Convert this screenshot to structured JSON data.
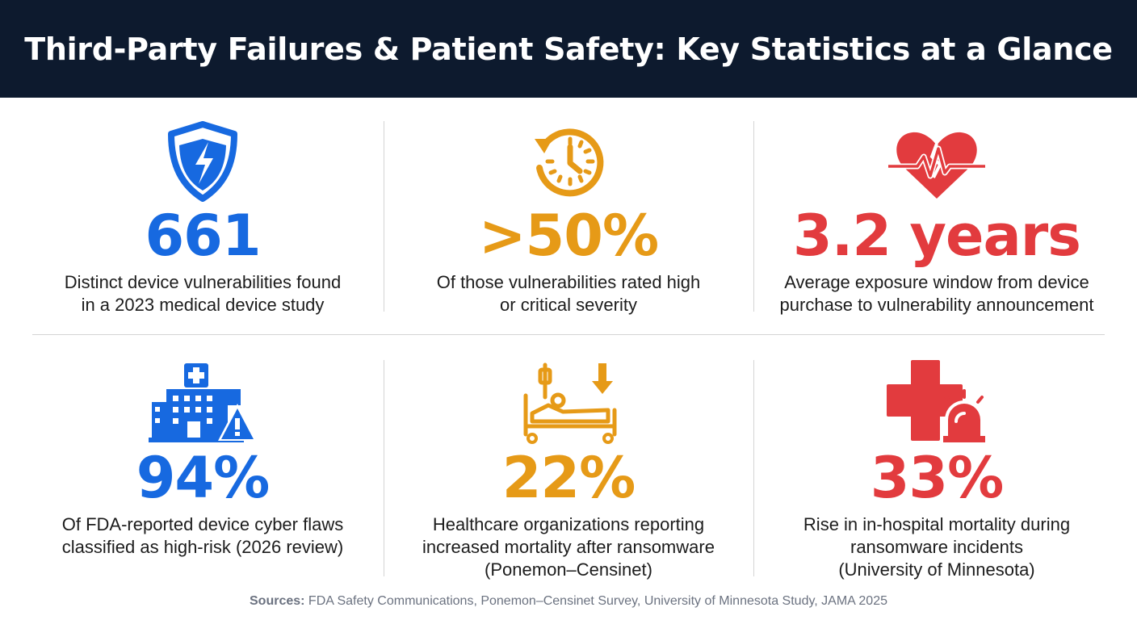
{
  "title": "Third-Party Failures & Patient Safety: Key Statistics at a Glance",
  "colors": {
    "header_bg": "#0d1a2e",
    "blue": "#1769e0",
    "orange": "#e69a17",
    "red": "#e23b3e"
  },
  "stats": [
    {
      "icon": "shield-lightning-icon",
      "value": "661",
      "color": "blue",
      "desc": [
        "Distinct device vulnerabilities found",
        "in a 2023 medical device study"
      ]
    },
    {
      "icon": "clock-history-icon",
      "value": ">50%",
      "color": "orange",
      "desc": [
        "Of those vulnerabilities rated high",
        "or critical severity"
      ]
    },
    {
      "icon": "broken-heart-pulse-icon",
      "value": "3.2 years",
      "color": "red",
      "desc": [
        "Average exposure window from device",
        "purchase to vulnerability announcement"
      ]
    },
    {
      "icon": "hospital-warning-icon",
      "value": "94%",
      "color": "blue",
      "desc": [
        "Of FDA-reported device cyber flaws",
        "classified as high-risk (2026 review)"
      ]
    },
    {
      "icon": "patient-bed-down-arrow-icon",
      "value": "22%",
      "color": "orange",
      "desc": [
        "Healthcare organizations reporting",
        "increased mortality after ransomware",
        "(Ponemon–Censinet)"
      ]
    },
    {
      "icon": "medical-cross-alarm-icon",
      "value": "33%",
      "color": "red",
      "desc": [
        "Rise in in-hospital mortality during",
        "ransomware incidents",
        "(University of Minnesota)"
      ]
    }
  ],
  "footer": {
    "label": "Sources:",
    "text": " FDA Safety Communications, Ponemon–Censinet Survey, University of Minnesota Study, JAMA 2025"
  }
}
